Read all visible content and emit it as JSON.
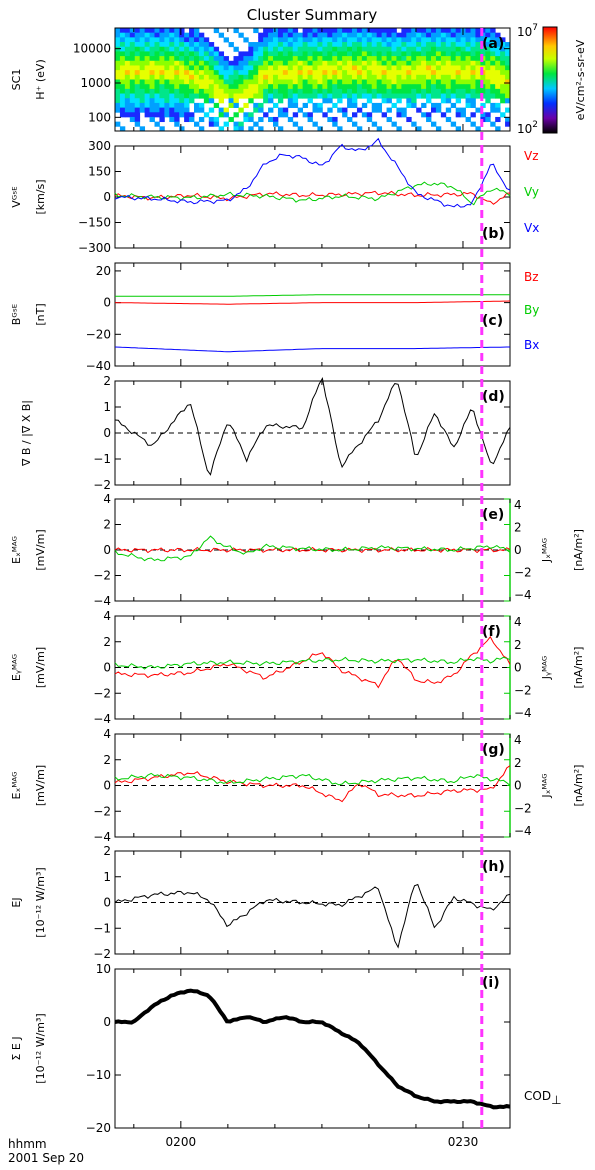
{
  "figure": {
    "title": "Cluster Summary",
    "xtick_labels": [
      "0200",
      "0230"
    ],
    "footer_line1": "hhmm",
    "footer_line2": "2001 Sep 20",
    "marker_color": "#ff33ff",
    "colorbar": {
      "top": "10",
      "top_exp": "7",
      "bottom": "10",
      "bottom_exp": "2",
      "unit": "eV/cm²-s-sr-eV"
    },
    "cod_label": "COD",
    "cod_symbol": "⊥"
  },
  "chart_data": [
    {
      "id": "a",
      "type": "heatmap",
      "panel_label": "(a)",
      "ylabel_lines": [
        "SC1",
        "H⁺ (eV)"
      ],
      "yscale": "log",
      "ylim": [
        40,
        40000
      ],
      "ytick_labels": [
        "10000",
        "1000",
        "100"
      ],
      "x": [
        -1,
        1,
        3,
        5,
        7,
        9,
        11,
        13,
        15,
        17,
        19,
        21,
        23,
        25,
        27,
        29,
        31,
        33,
        35
      ],
      "peak_energy_eV": [
        2200,
        1600,
        1100,
        250,
        400,
        1800,
        1900,
        2000,
        2100,
        2300,
        2500,
        2200,
        1700,
        2200,
        2400,
        2200,
        2100,
        1900,
        900
      ]
    },
    {
      "id": "b",
      "type": "line",
      "panel_label": "(b)",
      "ylabel_lines": [
        "Vᴳˢᴱ",
        "[km/s]"
      ],
      "ylim": [
        -300,
        300
      ],
      "ytick_labels": [
        "300",
        "150",
        "0",
        "−150",
        "−300"
      ],
      "series": [
        {
          "name": "Vz",
          "color": "#ff0000",
          "x": [
            -7,
            -3,
            1,
            5,
            9,
            13,
            17,
            21,
            25,
            29,
            31,
            33,
            35
          ],
          "y": [
            8,
            -5,
            10,
            -10,
            20,
            10,
            15,
            25,
            10,
            15,
            20,
            -40,
            20
          ]
        },
        {
          "name": "Vy",
          "color": "#00cc00",
          "x": [
            -7,
            -3,
            1,
            5,
            9,
            13,
            17,
            21,
            25,
            27,
            29,
            31,
            33,
            35
          ],
          "y": [
            10,
            0,
            -5,
            15,
            5,
            -20,
            5,
            -10,
            70,
            80,
            60,
            -40,
            50,
            20
          ]
        },
        {
          "name": "Vx",
          "color": "#0000ff",
          "x": [
            -7,
            -3,
            1,
            5,
            7,
            9,
            11,
            13,
            15,
            17,
            19,
            21,
            23,
            25,
            27,
            29,
            31,
            33,
            35
          ],
          "y": [
            0,
            -10,
            -30,
            -20,
            50,
            200,
            250,
            230,
            180,
            300,
            270,
            330,
            180,
            20,
            -20,
            -60,
            -40,
            200,
            30
          ]
        }
      ]
    },
    {
      "id": "c",
      "type": "line",
      "panel_label": "(c)",
      "ylabel_lines": [
        "Bᴳˢᴱ",
        "[nT]"
      ],
      "ylim": [
        -40,
        25
      ],
      "ytick_labels": [
        "20",
        "0",
        "−20",
        "−40"
      ],
      "series": [
        {
          "name": "Bz",
          "color": "#ff0000",
          "x": [
            -7,
            5,
            15,
            25,
            35
          ],
          "y": [
            0,
            -1,
            0,
            0,
            1
          ]
        },
        {
          "name": "By",
          "color": "#00cc00",
          "x": [
            -7,
            5,
            15,
            25,
            35
          ],
          "y": [
            4,
            4,
            5,
            5,
            5
          ]
        },
        {
          "name": "Bx",
          "color": "#0000ff",
          "x": [
            -7,
            5,
            15,
            25,
            35
          ],
          "y": [
            -28,
            -31,
            -29,
            -29,
            -28
          ]
        }
      ]
    },
    {
      "id": "d",
      "type": "line",
      "panel_label": "(d)",
      "ylabel_lines": [
        "∇ B / |∇ X B|"
      ],
      "ylim": [
        -2,
        2
      ],
      "ytick_labels": [
        "2",
        "1",
        "0",
        "−1",
        "−2"
      ],
      "reference_line": 0,
      "series": [
        {
          "name": "",
          "color": "#000000",
          "x": [
            -7,
            -3,
            1,
            3,
            5,
            7,
            9,
            13,
            15,
            17,
            21,
            23,
            25,
            27,
            29,
            31,
            33,
            35
          ],
          "y": [
            0.5,
            -0.5,
            1.2,
            -1.7,
            0.5,
            -1.0,
            0.3,
            0.2,
            2.2,
            -1.3,
            0.5,
            2.1,
            -1.0,
            0.8,
            -0.6,
            1.0,
            -1.3,
            0.2
          ]
        }
      ]
    },
    {
      "id": "e",
      "type": "line",
      "panel_label": "(e)",
      "ylabel_lines": [
        "Eₓᴹᴬᴳ",
        "[mV/m]"
      ],
      "ylim": [
        -4,
        4
      ],
      "ytick_labels": [
        "4",
        "2",
        "0",
        "−2",
        "−4"
      ],
      "right_ylabel_lines": [
        "Jₓᴹᴬᴳ",
        "[nA/m²]"
      ],
      "right_tick_labels": [
        "4",
        "2",
        "0",
        "−2",
        "−4"
      ],
      "reference_line": 0,
      "series": [
        {
          "name": "",
          "color": "#ff0000",
          "x": [
            -7,
            35
          ],
          "y": [
            0,
            0
          ]
        },
        {
          "name": "",
          "color": "#00cc00",
          "x": [
            -7,
            -3,
            1,
            3,
            5,
            7,
            9,
            13,
            17,
            21,
            25,
            29,
            33,
            35
          ],
          "y": [
            -0.2,
            -0.8,
            -0.5,
            1.0,
            0.2,
            -0.3,
            0.3,
            0.1,
            0.0,
            0.2,
            0.1,
            0.0,
            0.3,
            0.0
          ]
        }
      ]
    },
    {
      "id": "f",
      "type": "line",
      "panel_label": "(f)",
      "ylabel_lines": [
        "Eᵧᴹᴬᴳ",
        "[mV/m]"
      ],
      "ylim": [
        -4,
        4
      ],
      "ytick_labels": [
        "4",
        "2",
        "0",
        "−2",
        "−4"
      ],
      "right_ylabel_lines": [
        "Jᵧᴹᴬᴳ",
        "[nA/m²]"
      ],
      "right_tick_labels": [
        "4",
        "2",
        "0",
        "−2",
        "−4"
      ],
      "reference_line": 0,
      "series": [
        {
          "name": "",
          "color": "#ff0000",
          "x": [
            -7,
            -3,
            1,
            5,
            9,
            13,
            15,
            17,
            21,
            23,
            25,
            27,
            29,
            31,
            33,
            35
          ],
          "y": [
            -0.5,
            -0.6,
            -0.4,
            0.3,
            -0.8,
            0.5,
            1.2,
            -0.2,
            -1.4,
            0.8,
            -1.0,
            -1.2,
            -0.6,
            1.0,
            2.3,
            0.2
          ]
        },
        {
          "name": "",
          "color": "#00cc00",
          "x": [
            -7,
            -3,
            1,
            5,
            9,
            13,
            17,
            21,
            25,
            29,
            31,
            33,
            35
          ],
          "y": [
            0.2,
            0.0,
            0.3,
            0.4,
            0.3,
            0.5,
            0.6,
            0.5,
            0.6,
            0.4,
            0.7,
            0.5,
            0.8
          ]
        }
      ]
    },
    {
      "id": "g",
      "type": "line",
      "panel_label": "(g)",
      "ylabel_lines": [
        "Eₓᴹᴬᴳ",
        "[mV/m]"
      ],
      "ylim": [
        -4,
        4
      ],
      "ytick_labels": [
        "4",
        "2",
        "0",
        "−2",
        "−4"
      ],
      "right_ylabel_lines": [
        "Jₓᴹᴬᴳ",
        "[nA/m²]"
      ],
      "right_tick_labels": [
        "4",
        "2",
        "0",
        "−2",
        "−4"
      ],
      "reference_line": 0,
      "series": [
        {
          "name": "",
          "color": "#ff0000",
          "x": [
            -7,
            -3,
            1,
            5,
            9,
            13,
            17,
            19,
            21,
            25,
            29,
            33,
            35
          ],
          "y": [
            0.2,
            0.6,
            1.0,
            0.3,
            0.0,
            0.0,
            -1.2,
            0.2,
            -0.7,
            -0.8,
            -0.4,
            -0.3,
            1.5
          ]
        },
        {
          "name": "",
          "color": "#00cc00",
          "x": [
            -7,
            -3,
            1,
            5,
            9,
            13,
            17,
            21,
            25,
            29,
            31,
            33,
            35
          ],
          "y": [
            0.5,
            0.8,
            0.6,
            0.2,
            0.5,
            0.8,
            0.1,
            0.4,
            0.6,
            0.3,
            0.8,
            0.5,
            0.2
          ]
        }
      ]
    },
    {
      "id": "h",
      "type": "line",
      "panel_label": "(h)",
      "ylabel_lines": [
        "EJ",
        "[10⁻¹² W/m³]"
      ],
      "ylim": [
        -2,
        2
      ],
      "ytick_labels": [
        "2",
        "1",
        "0",
        "−1",
        "−2"
      ],
      "reference_line": 0,
      "series": [
        {
          "name": "",
          "color": "#000000",
          "x": [
            -7,
            -3,
            1,
            3,
            5,
            9,
            13,
            17,
            21,
            23,
            25,
            27,
            29,
            33,
            35
          ],
          "y": [
            0.0,
            0.3,
            0.4,
            0.1,
            -0.9,
            0.1,
            0.0,
            -0.1,
            0.6,
            -1.8,
            0.9,
            -1.0,
            0.2,
            -0.3,
            0.3
          ]
        }
      ]
    },
    {
      "id": "i",
      "type": "line",
      "panel_label": "(i)",
      "ylabel_lines": [
        "Σ E J",
        "[10⁻¹² W/m³]"
      ],
      "ylim": [
        -20,
        10
      ],
      "ytick_labels": [
        "10",
        "0",
        "−10",
        "−20"
      ],
      "series": [
        {
          "name": "",
          "color": "#000000",
          "x": [
            -7,
            -5,
            -3,
            -1,
            1,
            3,
            5,
            7,
            9,
            11,
            13,
            15,
            17,
            19,
            21,
            23,
            25,
            27,
            29,
            31,
            33,
            35
          ],
          "y": [
            0,
            0,
            3,
            5,
            6,
            5,
            0,
            1,
            0,
            1,
            0,
            0,
            -2,
            -4,
            -8,
            -12,
            -14,
            -15,
            -15,
            -15,
            -16,
            -16
          ]
        }
      ]
    }
  ]
}
